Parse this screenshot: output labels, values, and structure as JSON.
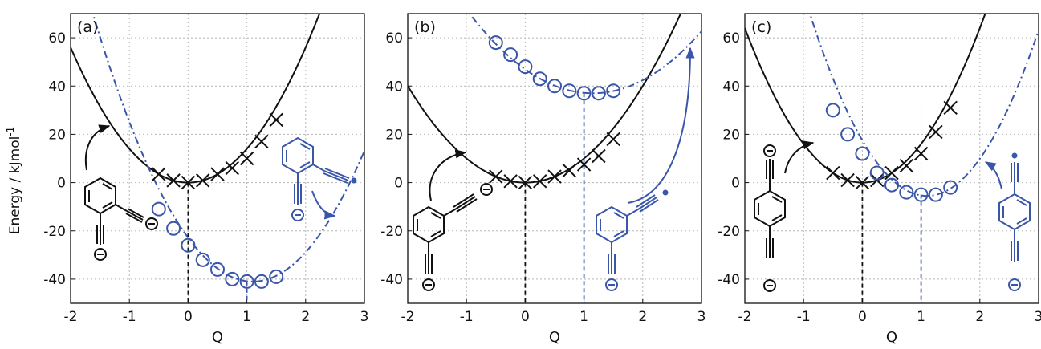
{
  "figure": {
    "ylabel": "Energy / kJmol",
    "ylabel_superscript": "-1"
  },
  "colors": {
    "neutral": "#111111",
    "radical": "#3a56a8",
    "grid": "#b5b5b5"
  },
  "chart_data": [
    {
      "type": "line",
      "panel_label": "(a)",
      "xlabel": "Q",
      "xlim": [
        -2,
        3
      ],
      "ylim": [
        -50,
        70
      ],
      "xticks": [
        -2,
        -1,
        0,
        1,
        2,
        3
      ],
      "yticks": [
        -40,
        -20,
        0,
        20,
        40,
        60
      ],
      "grid": true,
      "curves": [
        {
          "style": "solid",
          "color": "#111111",
          "min_q": 0,
          "min_e": 0,
          "k": 14
        },
        {
          "style": "dashdot",
          "color": "#3a56a8",
          "min_q": 1.1,
          "min_e": -41,
          "k": 15
        }
      ],
      "markers_x": {
        "q": [
          -0.5,
          -0.25,
          0,
          0.25,
          0.5,
          0.75,
          1.0,
          1.25,
          1.5
        ],
        "e": [
          3.5,
          0.9,
          0,
          0.9,
          3.5,
          6,
          10,
          17,
          26
        ]
      },
      "markers_o": {
        "q": [
          -0.5,
          -0.25,
          0,
          0.25,
          0.5,
          0.75,
          1.0,
          1.25,
          1.5
        ],
        "e": [
          -11,
          -19,
          -26,
          -32,
          -36,
          -40,
          -41,
          -41,
          -39
        ]
      },
      "vlines": [
        {
          "q": 1,
          "from": -41,
          "color": "#3a56a8"
        }
      ]
    },
    {
      "type": "line",
      "panel_label": "(b)",
      "xlabel": "Q",
      "xlim": [
        -2,
        3
      ],
      "ylim": [
        -50,
        70
      ],
      "xticks": [
        -2,
        -1,
        0,
        1,
        2,
        3
      ],
      "yticks": [
        -40,
        -20,
        0,
        20,
        40,
        60
      ],
      "grid": true,
      "curves": [
        {
          "style": "solid",
          "color": "#111111",
          "min_q": 0,
          "min_e": 0,
          "k": 10
        },
        {
          "style": "dashdot",
          "color": "#3a56a8",
          "min_q": 1.15,
          "min_e": 37,
          "k": 7.5
        }
      ],
      "markers_x": {
        "q": [
          -0.5,
          -0.25,
          0,
          0.25,
          0.5,
          0.75,
          1.0,
          1.25,
          1.5
        ],
        "e": [
          2.5,
          0.6,
          0,
          0.6,
          2.5,
          5,
          7.5,
          11,
          18
        ]
      },
      "markers_o": {
        "q": [
          -0.5,
          -0.25,
          0,
          0.25,
          0.5,
          0.75,
          1.0,
          1.25,
          1.5
        ],
        "e": [
          58,
          53,
          48,
          43,
          40,
          38,
          37,
          37,
          38
        ]
      },
      "vlines": [
        {
          "q": 1,
          "from": 37,
          "color": "#3a56a8"
        }
      ]
    },
    {
      "type": "line",
      "panel_label": "(c)",
      "xlabel": "Q",
      "xlim": [
        -2,
        3
      ],
      "ylim": [
        -50,
        70
      ],
      "xticks": [
        -2,
        -1,
        0,
        1,
        2,
        3
      ],
      "yticks": [
        -40,
        -20,
        0,
        20,
        40,
        60
      ],
      "grid": true,
      "curves": [
        {
          "style": "solid",
          "color": "#111111",
          "min_q": 0,
          "min_e": 0,
          "k": 16
        },
        {
          "style": "dashdot",
          "color": "#3a56a8",
          "min_q": 1.1,
          "min_e": -5.5,
          "k": 19
        }
      ],
      "markers_x": {
        "q": [
          -0.5,
          -0.25,
          0,
          0.25,
          0.5,
          0.75,
          1.0,
          1.25,
          1.5
        ],
        "e": [
          4,
          1,
          0,
          1,
          4,
          7,
          12,
          21,
          31
        ]
      },
      "markers_o": {
        "q": [
          -0.5,
          -0.25,
          0,
          0.25,
          0.5,
          0.75,
          1.0,
          1.25,
          1.5
        ],
        "e": [
          30,
          20,
          12,
          4,
          -1,
          -4,
          -5,
          -5,
          -2
        ]
      },
      "vlines": [
        {
          "q": 1,
          "from": -5,
          "color": "#3a56a8"
        }
      ]
    }
  ]
}
